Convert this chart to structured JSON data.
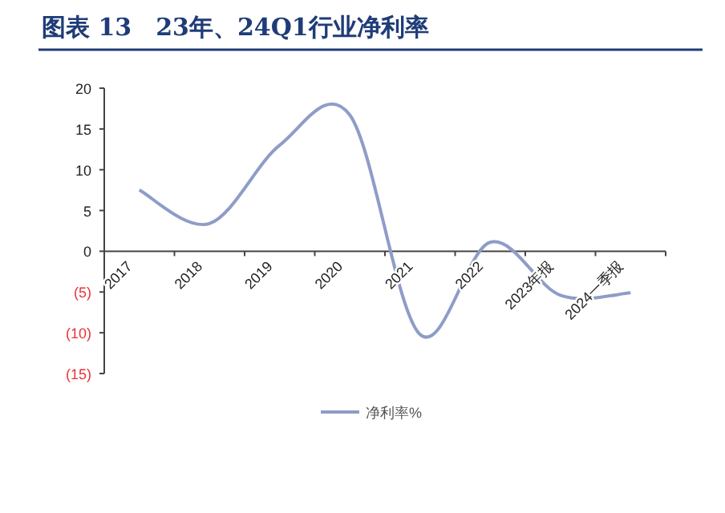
{
  "chart_data": {
    "type": "line",
    "title": "图表 13　23年、24Q1行业净利率",
    "categories": [
      "2017",
      "2018",
      "2019",
      "2020",
      "2021",
      "2022",
      "2023年报",
      "2024一季报"
    ],
    "series": [
      {
        "name": "净利率%",
        "color": "#8e9cc8",
        "values": [
          7.5,
          3.4,
          13,
          16.7,
          -10.2,
          1.1,
          -5.4,
          -5.1
        ]
      }
    ],
    "ylim": [
      -15,
      20
    ],
    "yticks": [
      {
        "value": -15,
        "label": "(15)"
      },
      {
        "value": -10,
        "label": "(10)"
      },
      {
        "value": -5,
        "label": "(5)"
      },
      0,
      5,
      10,
      15,
      20
    ],
    "legend": "bottom",
    "grid": false,
    "marker": "none"
  }
}
